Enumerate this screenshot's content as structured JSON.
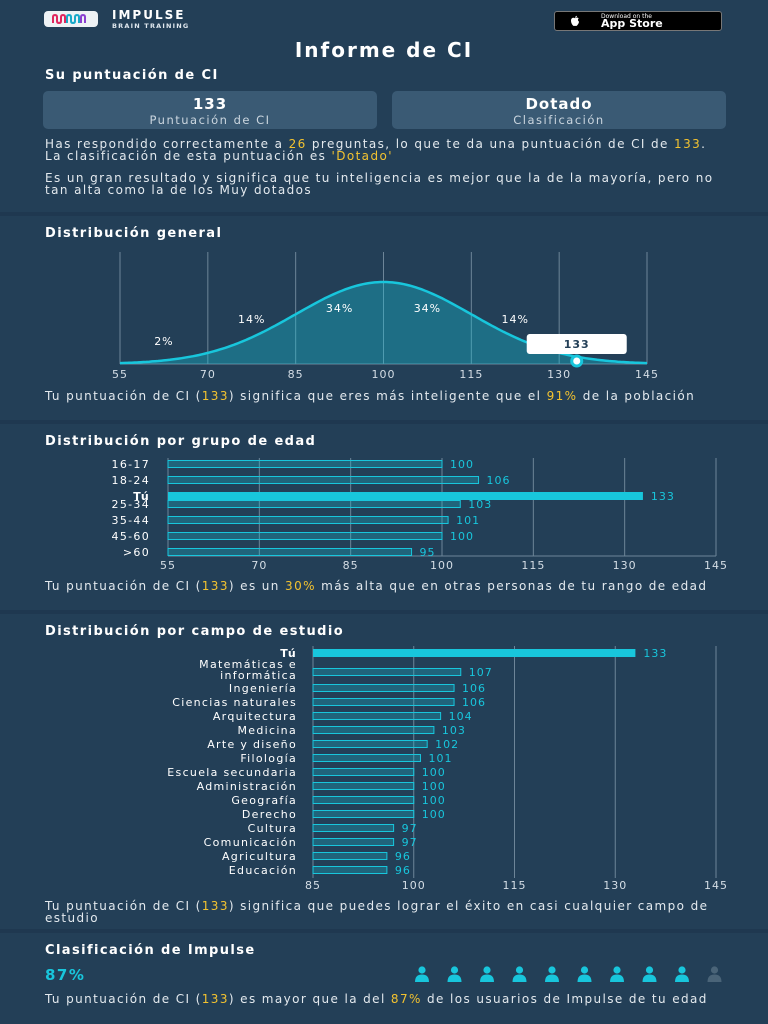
{
  "header": {
    "brand_name": "IMPULSE",
    "brand_sub": "BRAIN TRAINING",
    "appstore_small": "Download on the",
    "appstore_big": "App Store",
    "icons": [
      "impulse-logo-icon",
      "apple-icon"
    ]
  },
  "title": "Informe de CI",
  "score_section": {
    "title": "Su puntuación de CI",
    "card1_value": "133",
    "card1_label": "Puntuación de CI",
    "card2_value": "Dotado",
    "card2_label": "Clasificación",
    "p1_a": "Has respondido correctamente a ",
    "p1_n": "26",
    "p1_b": " preguntas, lo que te da una puntuación de CI de ",
    "p1_score": "133",
    "p1_c": ". La clasificación de esta puntuación es ",
    "p1_class": "'Dotado'",
    "p2": "Es un gran resultado y significa que tu inteligencia es mejor que la de la mayoría, pero no tan alta como la de los Muy dotados"
  },
  "general": {
    "title": "Distribución general",
    "t_a": "Tu puntuación de CI (",
    "t_score": "133",
    "t_b": ") significa que eres más inteligente que el ",
    "t_pct": "91%",
    "t_c": " de la población"
  },
  "age": {
    "title": "Distribución por grupo de edad",
    "t_a": "Tu puntuación de CI (",
    "t_score": "133",
    "t_b": ") es un ",
    "t_pct": "30%",
    "t_c": " más alta que en otras personas de tu rango de edad"
  },
  "field": {
    "title": "Distribución por campo de estudio",
    "t_a": "Tu puntuación de CI (",
    "t_score": "133",
    "t_b": ") significa que puedes lograr el éxito en casi cualquier campo de estudio"
  },
  "impulse": {
    "title": "Clasificación de Impulse",
    "pct": "87%",
    "people_total": 10,
    "people_filled_fraction": 0.87,
    "t_a": "Tu puntuación de CI (",
    "t_score": "133",
    "t_b": ") es mayor que la del ",
    "t_pct": "87%",
    "t_c": " de los usuarios de Impulse de tu edad"
  },
  "colors": {
    "accent": "#18c6dc",
    "highlight": "#f2c230",
    "background": "#233f57",
    "card": "#3a5a74"
  },
  "chart_data": [
    {
      "type": "area",
      "name": "Distribución general",
      "x_ticks": [
        55,
        70,
        85,
        100,
        115,
        130,
        145
      ],
      "xlim": [
        55,
        145
      ],
      "curve": "normal distribution, mean 100, sd 15",
      "band_labels": [
        {
          "x": 62.5,
          "label": "2%"
        },
        {
          "x": 77.5,
          "label": "14%"
        },
        {
          "x": 92.5,
          "label": "34%"
        },
        {
          "x": 107.5,
          "label": "34%"
        },
        {
          "x": 122.5,
          "label": "14%"
        }
      ],
      "marker": {
        "x": 133,
        "label": "133"
      }
    },
    {
      "type": "bar",
      "orientation": "horizontal",
      "name": "Distribución por grupo de edad",
      "categories": [
        "16-17",
        "18-24",
        "Tú",
        "25-34",
        "35-44",
        "45-60",
        ">60"
      ],
      "values": [
        100,
        106,
        133,
        103,
        101,
        100,
        95
      ],
      "highlight": "Tú",
      "xlim": [
        55,
        145
      ],
      "x_ticks": [
        55,
        70,
        85,
        100,
        115,
        130,
        145
      ]
    },
    {
      "type": "bar",
      "orientation": "horizontal",
      "name": "Distribución por campo de estudio",
      "categories": [
        "Tú",
        "Matemáticas e informática",
        "Ingeniería",
        "Ciencias naturales",
        "Arquitectura",
        "Medicina",
        "Arte y diseño",
        "Filología",
        "Escuela secundaria",
        "Administración",
        "Geografía",
        "Derecho",
        "Cultura",
        "Comunicación",
        "Agricultura",
        "Educación"
      ],
      "values": [
        133,
        107,
        106,
        106,
        104,
        103,
        102,
        101,
        100,
        100,
        100,
        100,
        97,
        97,
        96,
        96
      ],
      "highlight": "Tú",
      "xlim": [
        85,
        145
      ],
      "x_ticks": [
        85,
        100,
        115,
        130,
        145
      ]
    }
  ]
}
